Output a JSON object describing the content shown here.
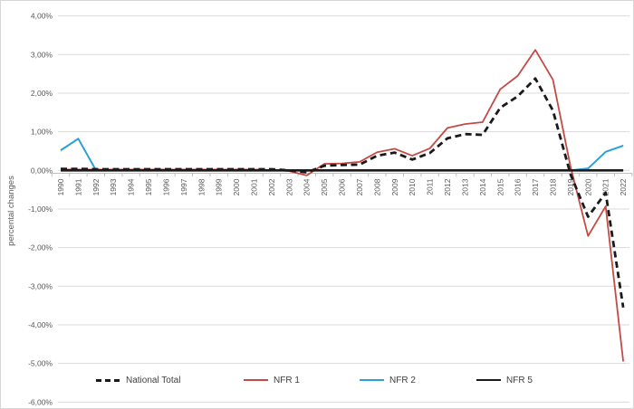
{
  "chart_data": {
    "type": "line",
    "title": "",
    "xlabel": "",
    "ylabel": "percental changes",
    "ylim": [
      -6,
      4
    ],
    "grid": true,
    "legend_position": "bottom",
    "y_ticks": [
      "4,00%",
      "3,00%",
      "2,00%",
      "1,00%",
      "0,00%",
      "-1,00%",
      "-2,00%",
      "-3,00%",
      "-4,00%",
      "-5,00%",
      "-6,00%"
    ],
    "y_tick_values": [
      4,
      3,
      2,
      1,
      0,
      -1,
      -2,
      -3,
      -4,
      -5,
      -6
    ],
    "x": [
      1990,
      1991,
      1992,
      1993,
      1994,
      1995,
      1996,
      1997,
      1998,
      1999,
      2000,
      2001,
      2002,
      2003,
      2004,
      2005,
      2006,
      2007,
      2008,
      2009,
      2010,
      2011,
      2012,
      2013,
      2014,
      2015,
      2016,
      2017,
      2018,
      2019,
      2020,
      2021,
      2022
    ],
    "draw_order": [
      1,
      2,
      3,
      0
    ],
    "series": [
      {
        "name": "National Total",
        "color": "#1a1a1a",
        "style": "dashed",
        "width": 2.8,
        "values": [
          0.04,
          0.04,
          0.03,
          0.03,
          0.03,
          0.03,
          0.03,
          0.03,
          0.03,
          0.03,
          0.03,
          0.03,
          0.03,
          0.0,
          -0.05,
          0.12,
          0.14,
          0.15,
          0.38,
          0.46,
          0.28,
          0.45,
          0.83,
          0.94,
          0.92,
          1.62,
          1.92,
          2.38,
          1.55,
          -0.1,
          -1.2,
          -0.58,
          -3.55
        ]
      },
      {
        "name": "NFR 1",
        "color": "#c24b46",
        "style": "solid",
        "width": 1.8,
        "values": [
          0.02,
          0.02,
          0.02,
          0.02,
          0.02,
          0.02,
          0.02,
          0.02,
          0.02,
          0.02,
          0.02,
          0.02,
          0.01,
          -0.02,
          -0.13,
          0.17,
          0.18,
          0.22,
          0.47,
          0.56,
          0.38,
          0.57,
          1.1,
          1.2,
          1.25,
          2.1,
          2.45,
          3.12,
          2.35,
          0.1,
          -1.7,
          -0.93,
          -4.95
        ]
      },
      {
        "name": "NFR 2",
        "color": "#29a0d9",
        "style": "solid",
        "width": 2,
        "values": [
          0.52,
          0.82,
          0.01,
          0,
          0,
          0,
          0,
          0,
          0,
          0,
          0,
          0,
          0,
          0,
          0,
          0,
          0,
          0,
          0,
          0,
          0,
          0,
          0,
          0,
          0,
          0,
          0,
          0,
          0,
          0,
          0.05,
          0.48,
          0.64
        ]
      },
      {
        "name": "NFR 5",
        "color": "#1a1a1a",
        "style": "solid",
        "width": 2.6,
        "values": [
          0,
          0,
          0,
          0,
          0,
          0,
          0,
          0,
          0,
          0,
          0,
          0,
          0,
          0,
          0,
          0,
          0,
          0,
          0,
          0,
          0,
          0,
          0,
          0,
          0,
          0,
          0,
          0,
          0,
          0,
          0,
          0,
          0
        ]
      }
    ]
  },
  "legend": {
    "items": [
      {
        "label": "National Total"
      },
      {
        "label": "NFR 1"
      },
      {
        "label": "NFR 2"
      },
      {
        "label": "NFR 5"
      }
    ]
  }
}
